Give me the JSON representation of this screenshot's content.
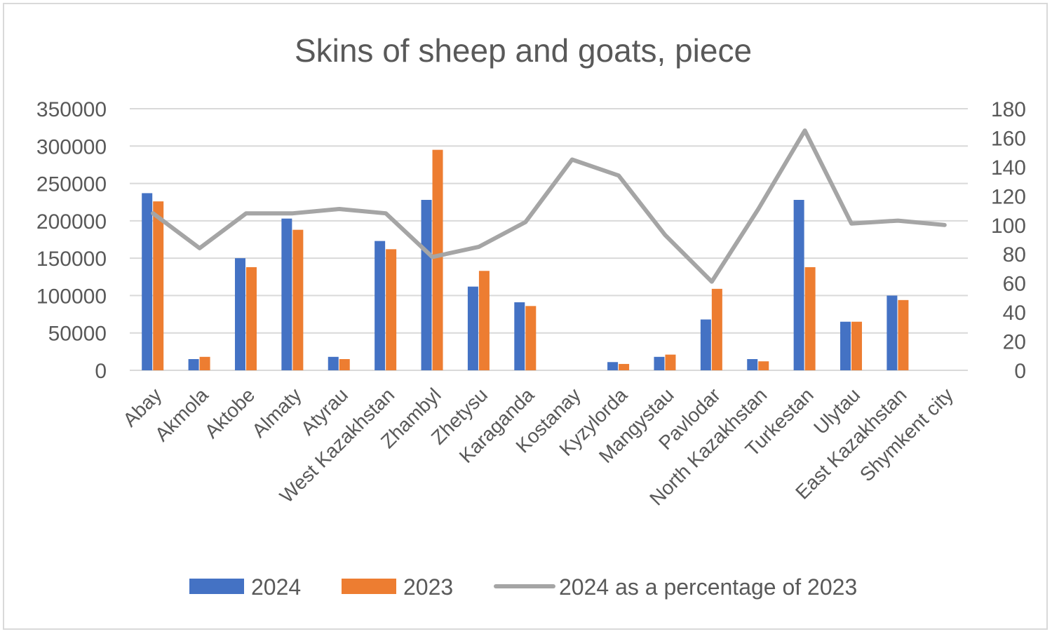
{
  "chart_data": {
    "type": "bar",
    "title": "Skins of sheep and goats, piece",
    "categories": [
      "Abay",
      "Akmola",
      "Aktobe",
      "Almaty",
      "Atyrau",
      "West Kazakhstan",
      "Zhambyl",
      "Zhetysu",
      "Karaganda",
      "Kostanay",
      "Kyzylorda",
      "Mangystau",
      "Pavlodar",
      "North Kazakhstan",
      "Turkestan",
      "Ulytau",
      "East Kazakhstan",
      "Shymkent city"
    ],
    "series": [
      {
        "name": "2024",
        "kind": "bar",
        "axis": "left",
        "color": "#4472C4",
        "values": [
          237000,
          15000,
          150000,
          203000,
          18000,
          173000,
          228000,
          112000,
          91000,
          0,
          11000,
          18000,
          68000,
          15000,
          228000,
          65000,
          100000,
          0
        ]
      },
      {
        "name": "2023",
        "kind": "bar",
        "axis": "left",
        "color": "#ED7D31",
        "values": [
          226000,
          18000,
          138000,
          188000,
          15000,
          162000,
          295000,
          133000,
          86000,
          0,
          8500,
          21000,
          109000,
          12000,
          138000,
          65000,
          94000,
          0
        ]
      },
      {
        "name": "2024 as a percentage of 2023",
        "kind": "line",
        "axis": "right",
        "color": "#A5A5A5",
        "values": [
          108,
          84,
          108,
          108,
          111,
          108,
          78,
          85,
          102,
          145,
          134,
          93,
          61,
          111,
          165,
          101,
          103,
          100
        ]
      }
    ],
    "y_left": {
      "min": 0,
      "max": 350000,
      "step": 50000,
      "ticks": [
        "0",
        "50000",
        "100000",
        "150000",
        "200000",
        "250000",
        "300000",
        "350000"
      ]
    },
    "y_right": {
      "min": 0,
      "max": 180,
      "step": 20,
      "ticks": [
        "0",
        "20",
        "40",
        "60",
        "80",
        "100",
        "120",
        "140",
        "160",
        "180"
      ]
    },
    "xlabel": "",
    "ylabel": "",
    "grid": true,
    "legend_position": "bottom",
    "colors": {
      "grid": "#d9d9d9",
      "text": "#595959"
    }
  }
}
